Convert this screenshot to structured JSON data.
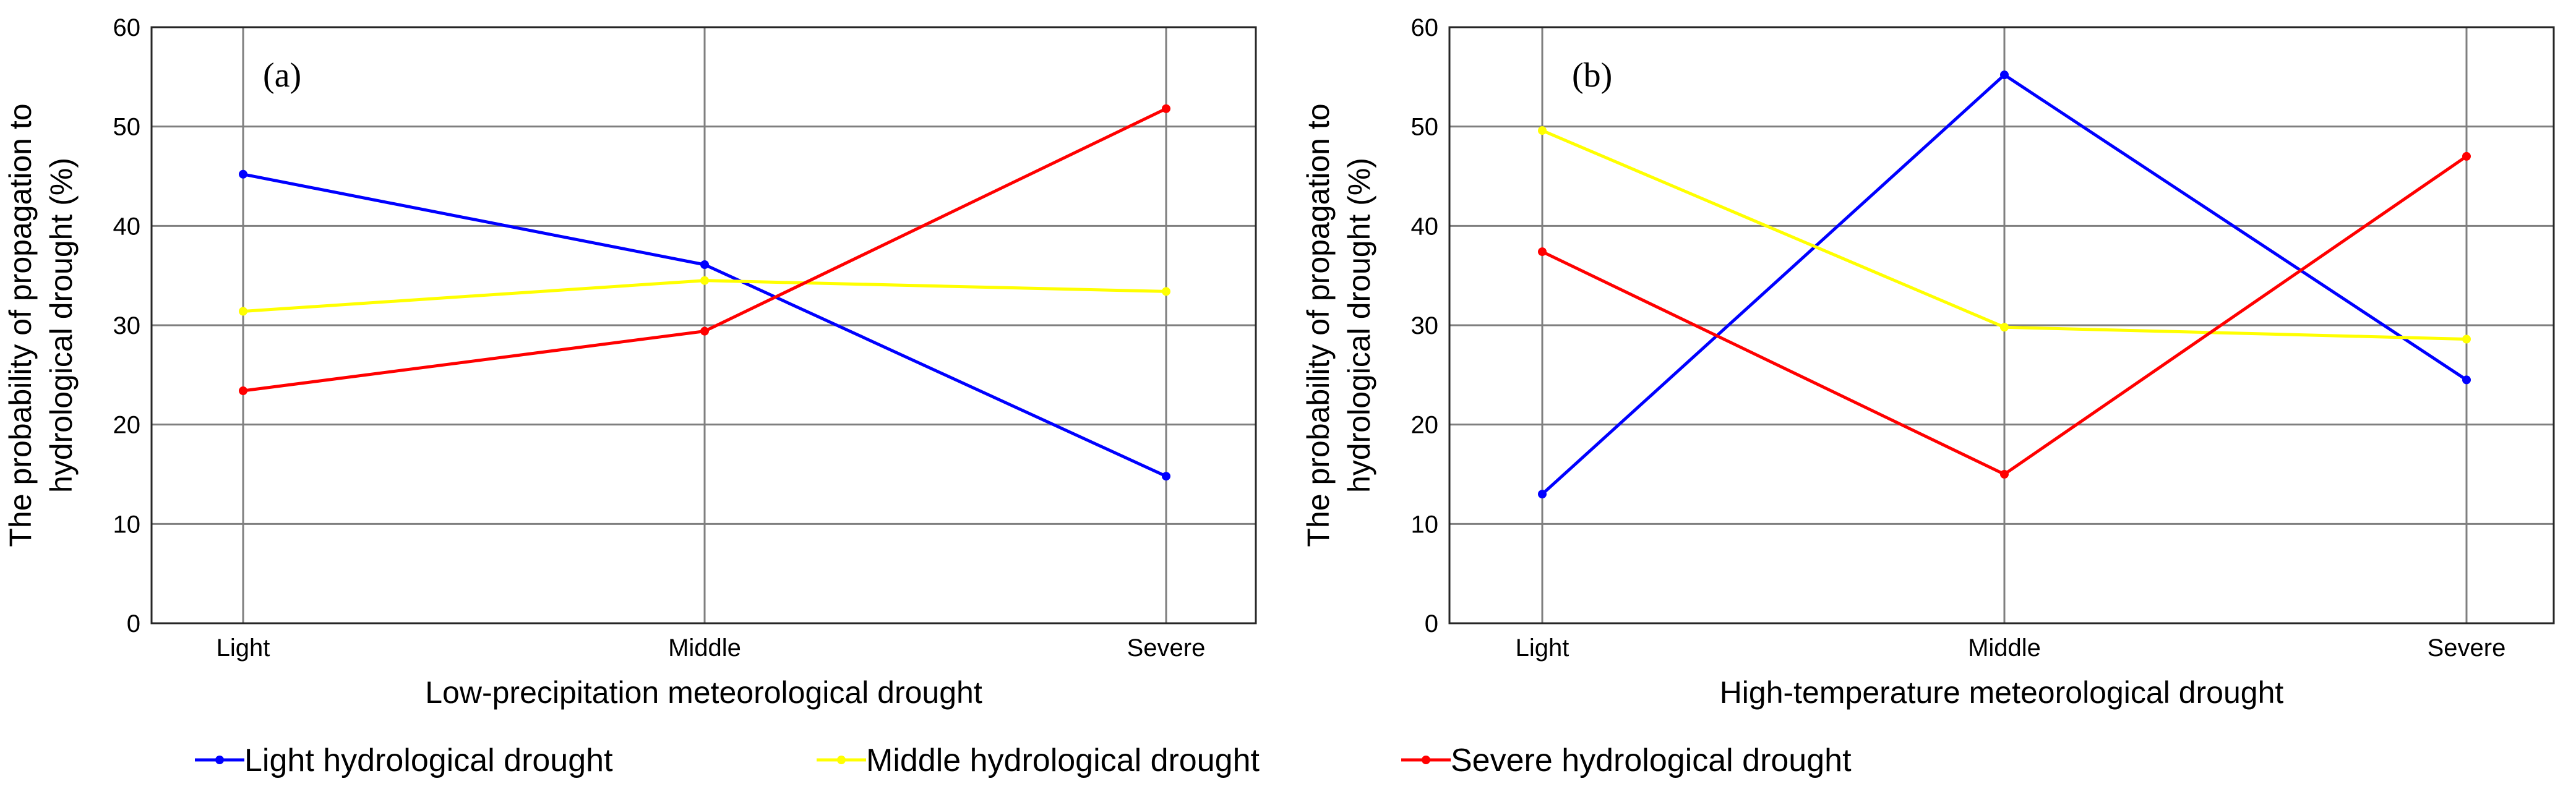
{
  "chart_data": [
    {
      "type": "line",
      "panel_label": "(a)",
      "categories": [
        "Light",
        "Middle",
        "Severe"
      ],
      "xlabel": "Low-precipitation meteorological drought",
      "ylabel_lines": [
        "The probability of propagation to",
        "hydrological drought (%)"
      ],
      "ylim": [
        0,
        60
      ],
      "yticks": [
        0,
        10,
        20,
        30,
        40,
        50,
        60
      ],
      "grid": true,
      "series": [
        {
          "name": "Light hydrological drought",
          "color": "#0000ff",
          "values": [
            45.2,
            36.1,
            14.8
          ]
        },
        {
          "name": "Middle hydrological drought",
          "color": "#ffff00",
          "values": [
            31.4,
            34.5,
            33.4
          ]
        },
        {
          "name": "Severe hydrological drought",
          "color": "#ff0000",
          "values": [
            23.4,
            29.4,
            51.8
          ]
        }
      ]
    },
    {
      "type": "line",
      "panel_label": "(b)",
      "categories": [
        "Light",
        "Middle",
        "Severe"
      ],
      "xlabel": "High-temperature meteorological drought",
      "ylabel_lines": [
        "The probability of propagation to",
        "hydrological drought (%)"
      ],
      "ylim": [
        0,
        60
      ],
      "yticks": [
        0,
        10,
        20,
        30,
        40,
        50,
        60
      ],
      "grid": true,
      "series": [
        {
          "name": "Light hydrological drought",
          "color": "#0000ff",
          "values": [
            13.0,
            55.2,
            24.5
          ]
        },
        {
          "name": "Middle hydrological drought",
          "color": "#ffff00",
          "values": [
            49.6,
            29.8,
            28.6
          ]
        },
        {
          "name": "Severe hydrological drought",
          "color": "#ff0000",
          "values": [
            37.4,
            15.0,
            47.0
          ]
        }
      ]
    }
  ],
  "legend": {
    "placement": "bottom",
    "entries": [
      {
        "label": "Light hydrological drought",
        "color": "#0000ff"
      },
      {
        "label": "Middle hydrological drought",
        "color": "#ffff00"
      },
      {
        "label": "Severe hydrological drought",
        "color": "#ff0000"
      }
    ]
  }
}
